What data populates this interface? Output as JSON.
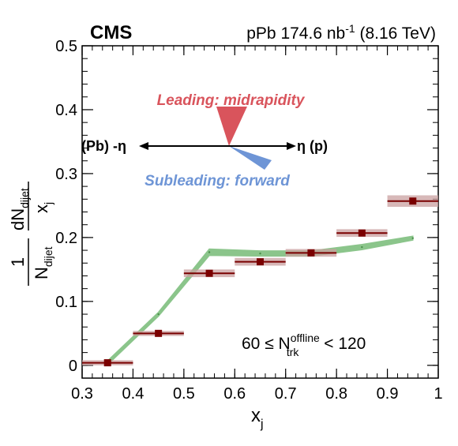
{
  "header": {
    "experiment": "CMS",
    "dataset_prefix": "pPb 174.6 nb",
    "dataset_sup": "-1",
    "dataset_suffix": " (8.16 TeV)"
  },
  "diagram": {
    "leading_label": "Leading: midrapidity",
    "subleading_label": "Subleading: forward",
    "left_label": "(Pb) -η",
    "right_label": "η (p)",
    "leading_color": "#d9545c",
    "subleading_color": "#6e95d6"
  },
  "selection": {
    "prefix": "60 ≤ N",
    "sup": "offline",
    "sub": "trk",
    "suffix": " < 120"
  },
  "y_axis_label": {
    "num": "1",
    "den_N": "N",
    "den_sub": "dijet",
    "dN": "dN",
    "dN_sub": "dijet",
    "dx": "x",
    "dx_sub": "j"
  },
  "x_axis_label": {
    "main": "x",
    "sub": "j"
  },
  "chart_data": {
    "type": "scatter",
    "xlim": [
      0.3,
      1.0
    ],
    "ylim": [
      -0.02,
      0.5
    ],
    "x_ticks": [
      0.3,
      0.4,
      0.5,
      0.6,
      0.7,
      0.8,
      0.9,
      1.0
    ],
    "x_tick_labels": [
      "0.3",
      "0.4",
      "0.5",
      "0.6",
      "0.7",
      "0.8",
      "0.9",
      "1"
    ],
    "y_ticks": [
      0.0,
      0.1,
      0.2,
      0.3,
      0.4,
      0.5
    ],
    "y_tick_labels": [
      "0",
      "0.1",
      "0.2",
      "0.3",
      "0.4",
      "0.5"
    ],
    "series": [
      {
        "kind": "data",
        "color": "#7a0000",
        "sys_color": "#c9a0a0",
        "points": [
          {
            "x": 0.35,
            "y": 0.004,
            "xerr": 0.05,
            "sys": 0.004
          },
          {
            "x": 0.45,
            "y": 0.05,
            "xerr": 0.05,
            "sys": 0.004
          },
          {
            "x": 0.55,
            "y": 0.144,
            "xerr": 0.05,
            "sys": 0.006
          },
          {
            "x": 0.65,
            "y": 0.162,
            "xerr": 0.05,
            "sys": 0.006
          },
          {
            "x": 0.75,
            "y": 0.176,
            "xerr": 0.05,
            "sys": 0.006
          },
          {
            "x": 0.85,
            "y": 0.207,
            "xerr": 0.05,
            "sys": 0.006
          },
          {
            "x": 0.95,
            "y": 0.257,
            "xerr": 0.05,
            "sys": 0.009
          }
        ]
      },
      {
        "kind": "band",
        "color": "#7fbf7f",
        "points": [
          {
            "x": 0.35,
            "y": 0.004,
            "w": 0.003
          },
          {
            "x": 0.45,
            "y": 0.08,
            "w": 0.003
          },
          {
            "x": 0.55,
            "y": 0.177,
            "w": 0.005
          },
          {
            "x": 0.65,
            "y": 0.175,
            "w": 0.004
          },
          {
            "x": 0.75,
            "y": 0.175,
            "w": 0.004
          },
          {
            "x": 0.85,
            "y": 0.185,
            "w": 0.004
          },
          {
            "x": 0.95,
            "y": 0.199,
            "w": 0.003
          }
        ]
      }
    ]
  }
}
